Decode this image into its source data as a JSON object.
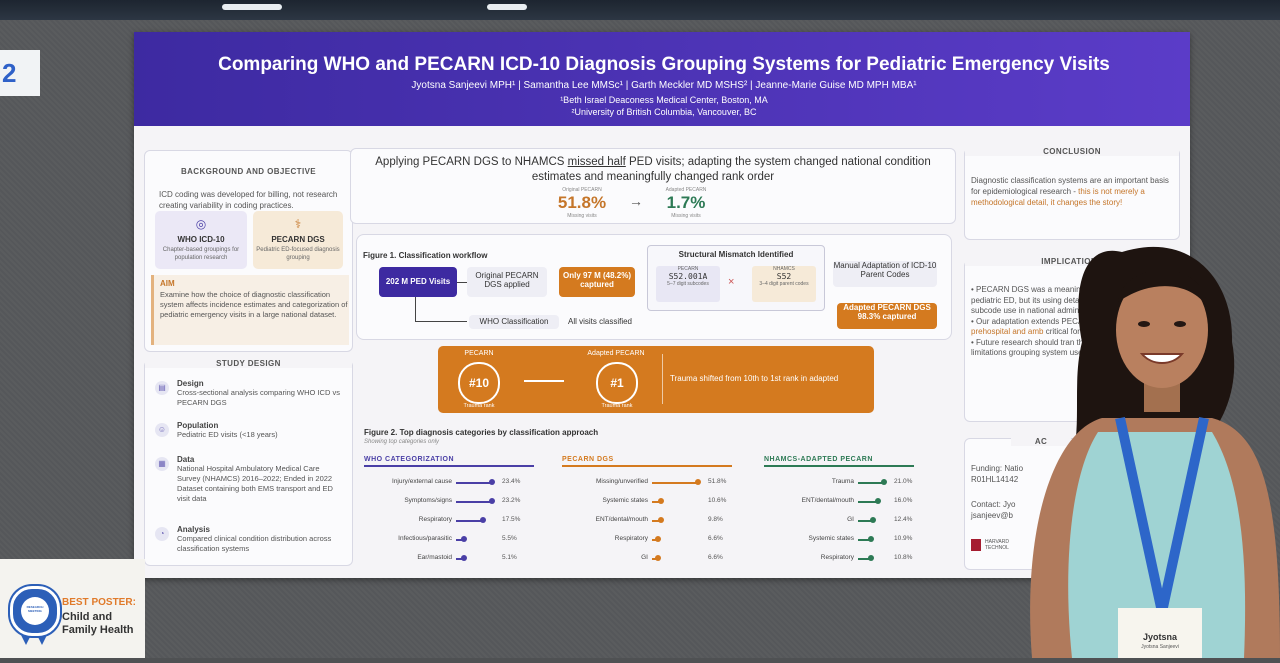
{
  "board_number": "2",
  "poster": {
    "title": "Comparing WHO and PECARN ICD-10 Diagnosis Grouping Systems for Pediatric Emergency Visits",
    "authors": "Jyotsna Sanjeevi MPH¹ | Samantha Lee MMSc¹ | Garth Meckler MD MSHS² | Jeanne-Marie Guise MD MPH MBA¹",
    "affiliation1": "¹Beth Israel Deaconess Medical Center, Boston, MA",
    "affiliation2": "²University of British Columbia, Vancouver, BC",
    "background": {
      "title": "BACKGROUND AND OBJECTIVE",
      "text": "ICD coding was developed for billing, not research creating variability in coding practices.",
      "who": {
        "title": "WHO ICD-10",
        "sub": "Chapter-based groupings for population research"
      },
      "pecarn": {
        "title": "PECARN DGS",
        "sub": "Pediatric ED-focused diagnosis grouping"
      },
      "aim_label": "AIM",
      "aim_text": "Examine how the choice of diagnostic classification system affects incidence estimates and categorization of pediatric emergency visits in a large national dataset."
    },
    "study_design": {
      "title": "STUDY DESIGN",
      "items": [
        {
          "h": "Design",
          "d": "Cross-sectional analysis comparing WHO ICD vs PECARN DGS"
        },
        {
          "h": "Population",
          "d": "Pediatric ED visits (<18 years)"
        },
        {
          "h": "Data",
          "d": "National Hospital Ambulatory Medical Care Survey (NHAMCS) 2016–2022; Ended in 2022 Dataset containing both EMS transport and ED visit data"
        },
        {
          "h": "Analysis",
          "d": "Compared clinical condition distribution across classification systems"
        }
      ]
    },
    "headline": {
      "text_pre": "Applying PECARN DGS to NHAMCS ",
      "text_u": "missed half",
      "text_post": " PED visits; adapting the system changed national condition estimates and meaningfully changed rank order",
      "orig_cap": "Original PECARN",
      "orig_val": "51.8%",
      "orig_sub": "Missing visits",
      "adapt_cap": "Adapted PECARN",
      "adapt_val": "1.7%",
      "adapt_sub": "Missing visits",
      "arrow": "→"
    },
    "fig1": {
      "title": "Figure 1. Classification workflow",
      "visits": "202 M PED Visits",
      "orig_applied": "Original PECARN DGS applied",
      "captured": "Only 97 M (48.2%) captured",
      "mismatch": "Structural Mismatch Identified",
      "pecarn_lbl": "PECARN",
      "pecarn_code": "S52.001A",
      "pecarn_sub": "5–7 digit subcodes",
      "x": "×",
      "nhamcs_lbl": "NHAMCS",
      "nhamcs_code": "S52",
      "nhamcs_sub": "3–4 digit parent codes",
      "manual": "Manual Adaptation of ICD-10 Parent Codes",
      "adapted": "Adapted PECARN DGS 98.3% captured",
      "who_class": "WHO Classification",
      "all_visits": "All visits classified"
    },
    "rank": {
      "left_lbl": "PECARN",
      "left_val": "#10",
      "left_sub": "Trauma rank",
      "right_lbl": "Adapted PECARN",
      "right_val": "#1",
      "right_sub": "Trauma rank",
      "text": "Trauma shifted from 10th to 1st rank in adapted"
    },
    "fig2": {
      "title": "Figure 2. Top diagnosis categories by classification approach",
      "subtitle": "Showing top categories only",
      "columns": [
        {
          "name": "WHO CATEGORIZATION",
          "color": "#4a3fa6",
          "rows": [
            [
              "Injury/external cause",
              "23.4%",
              23.4
            ],
            [
              "Symptoms/signs",
              "23.2%",
              23.2
            ],
            [
              "Respiratory",
              "17.5%",
              17.5
            ],
            [
              "Infectious/parasitic",
              "5.5%",
              5.5
            ],
            [
              "Ear/mastoid",
              "5.1%",
              5.1
            ]
          ]
        },
        {
          "name": "PECARN DGS",
          "color": "#d47a1f",
          "rows": [
            [
              "Missing/unverified",
              "51.8%",
              51.8
            ],
            [
              "Systemic states",
              "10.6%",
              10.6
            ],
            [
              "ENT/dental/mouth",
              "9.8%",
              9.8
            ],
            [
              "Respiratory",
              "6.6%",
              6.6
            ],
            [
              "GI",
              "6.6%",
              6.6
            ]
          ]
        },
        {
          "name": "NHAMCS-ADAPTED PECARN",
          "color": "#2d7a55",
          "rows": [
            [
              "Trauma",
              "21.0%",
              21.0
            ],
            [
              "ENT/dental/mouth",
              "16.0%",
              16.0
            ],
            [
              "GI",
              "12.4%",
              12.4
            ],
            [
              "Systemic states",
              "10.9%",
              10.9
            ],
            [
              "Respiratory",
              "10.8%",
              10.8
            ]
          ]
        }
      ]
    },
    "conclusion": {
      "title": "CONCLUSION",
      "text_a": "Diagnostic classification systems are an important basis for epidemiological research - ",
      "text_b": "this is not merely a methodological detail, it changes the story!"
    },
    "implications": {
      "title": "IMPLICATIONS",
      "b1": "PECARN DGS was a meaningful focused on pediatric ED, but its using detailed ICD-10 subcode use in national administrative",
      "b2_a": "Our adaptation extends PECAR capture ",
      "b2_b": "prehospital and amb",
      "b2_c": " critical for preparedness and",
      "b3": "Future research should tran the strengths and limitations grouping system used."
    },
    "ack": {
      "title": "AC",
      "funding": "Funding: Natio R01HL14142",
      "contact": "Contact: Jyo jsanjeev@b",
      "logo": "HARVARD TECHNOL"
    }
  },
  "award": {
    "label": "BEST POSTER:",
    "line1": "Child and",
    "line2": "Family Health",
    "seal": "RESEARCH MEETING"
  },
  "badge": {
    "name": "Jyotsna",
    "sub": "Jyotsna Sanjeevi"
  }
}
